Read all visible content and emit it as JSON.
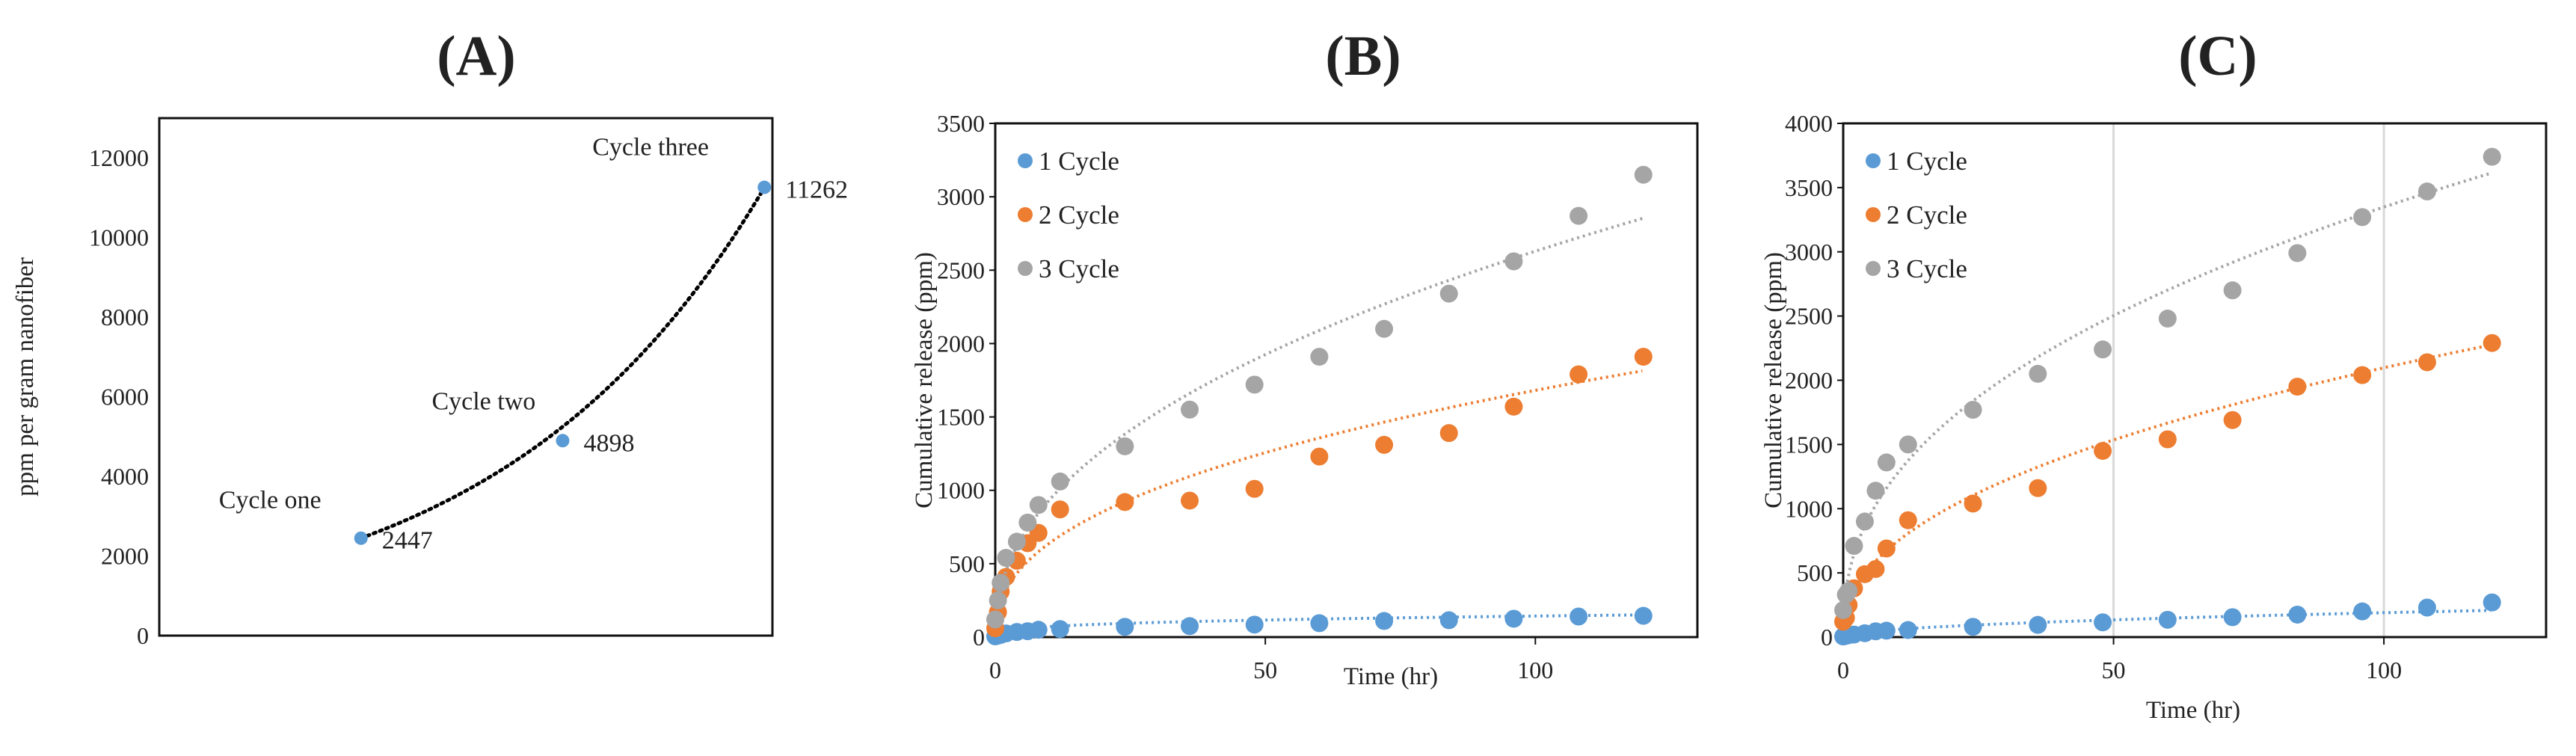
{
  "chart_data": [
    {
      "panel": "(A)",
      "type": "scatter",
      "title": "(A)",
      "xlabel": "",
      "ylabel": "ppm per gram nanofiber",
      "ylim": [
        0,
        13000
      ],
      "xlim": [
        0,
        3.04
      ],
      "yticks": [
        0,
        2000,
        4000,
        6000,
        8000,
        10000,
        12000
      ],
      "points": [
        {
          "x": 1,
          "y": 2447,
          "label": "Cycle one",
          "value_label": "2447"
        },
        {
          "x": 2,
          "y": 4898,
          "label": "Cycle two",
          "value_label": "4898"
        },
        {
          "x": 3,
          "y": 11262,
          "label": "Cycle three",
          "value_label": "11262"
        }
      ],
      "trendline": {
        "type": "exponential",
        "a": 1141,
        "b": 0.763,
        "color": "#000000"
      },
      "point_color": "#5B9BD5",
      "grid": false
    },
    {
      "panel": "(B)",
      "type": "scatter",
      "title": "(B)",
      "xlabel": "Time (hr)",
      "ylabel": "Cumulative release (ppm)",
      "xlim": [
        0,
        130
      ],
      "ylim": [
        0,
        3500
      ],
      "xticks": [
        0,
        50,
        100
      ],
      "yticks": [
        0,
        500,
        1000,
        1500,
        2000,
        2500,
        3000,
        3500
      ],
      "legend_position": "top-left",
      "grid": false,
      "x": [
        0,
        0.5,
        1,
        2,
        4,
        6,
        8,
        12,
        24,
        36,
        48,
        60,
        72,
        84,
        96,
        108,
        120
      ],
      "series": [
        {
          "name": "1 Cycle",
          "color": "#5B9BD5",
          "values": [
            5,
            10,
            15,
            25,
            35,
            40,
            50,
            55,
            70,
            75,
            85,
            95,
            110,
            115,
            125,
            140,
            145
          ],
          "trend": {
            "type": "power",
            "a": 36,
            "b": 0.3
          }
        },
        {
          "name": "2 Cycle",
          "color": "#ED7D31",
          "values": [
            60,
            170,
            310,
            410,
            520,
            640,
            710,
            870,
            920,
            930,
            1010,
            1230,
            1310,
            1390,
            1570,
            1790,
            1910
          ],
          "trend": {
            "type": "power",
            "a": 243,
            "b": 0.42
          }
        },
        {
          "name": "3 Cycle",
          "color": "#A5A5A5",
          "values": [
            120,
            250,
            370,
            540,
            650,
            780,
            900,
            1060,
            1300,
            1550,
            1720,
            1910,
            2100,
            2340,
            2560,
            2870,
            3150
          ],
          "trend": {
            "type": "power",
            "a": 331,
            "b": 0.45
          }
        }
      ]
    },
    {
      "panel": "(C)",
      "type": "scatter",
      "title": "(C)",
      "xlabel": "Time (hr)",
      "ylabel": "Cumulative release (ppm)",
      "xlim": [
        0,
        130
      ],
      "ylim": [
        0,
        4000
      ],
      "xticks": [
        0,
        50,
        100
      ],
      "yticks": [
        0,
        500,
        1000,
        1500,
        2000,
        2500,
        3000,
        3500,
        4000
      ],
      "legend_position": "top-left",
      "grid": "vertical",
      "x": [
        0,
        0.5,
        1,
        2,
        4,
        6,
        8,
        12,
        24,
        36,
        48,
        60,
        72,
        84,
        96,
        108,
        120
      ],
      "series": [
        {
          "name": "1 Cycle",
          "color": "#5B9BD5",
          "values": [
            5,
            10,
            15,
            20,
            30,
            45,
            50,
            55,
            80,
            95,
            115,
            135,
            155,
            175,
            200,
            230,
            270
          ],
          "trend": {
            "type": "power",
            "a": 19,
            "b": 0.5
          }
        },
        {
          "name": "2 Cycle",
          "color": "#ED7D31",
          "values": [
            120,
            150,
            250,
            380,
            490,
            530,
            690,
            910,
            1040,
            1160,
            1450,
            1540,
            1690,
            1950,
            2040,
            2140,
            2290
          ],
          "trend": {
            "type": "power",
            "a": 264,
            "b": 0.45
          }
        },
        {
          "name": "3 Cycle",
          "color": "#A5A5A5",
          "values": [
            210,
            330,
            360,
            710,
            900,
            1140,
            1360,
            1500,
            1770,
            2050,
            2240,
            2480,
            2700,
            2990,
            3270,
            3470,
            3740
          ],
          "trend": {
            "type": "power",
            "a": 484,
            "b": 0.42
          }
        }
      ]
    }
  ]
}
